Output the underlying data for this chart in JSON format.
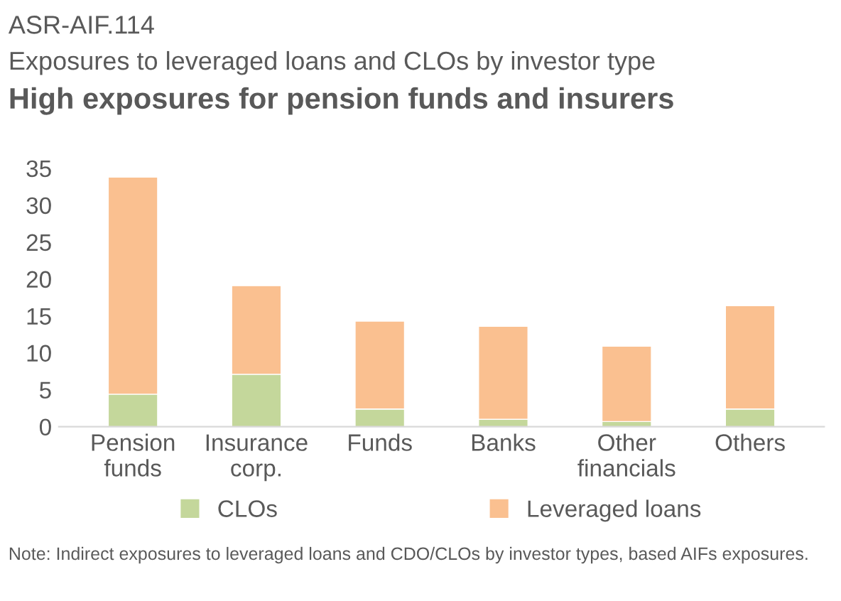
{
  "chart_data": {
    "type": "bar",
    "title": "High exposures for pension funds and insurers",
    "subtitle": "Exposures to leveraged loans and CLOs by investor type",
    "annotations": [
      "ASR-AIF.114",
      "Note: Indirect exposures to leveraged loans and CDO/CLOs by investor types, based AIFs exposures."
    ],
    "categories": [
      "Pension\nfunds",
      "Insurance\ncorp.",
      "Funds",
      "Banks",
      "Other\nfinancials",
      "Others"
    ],
    "stacked": true,
    "series": [
      {
        "name": "CLOs",
        "color": "#c4d79b",
        "values": [
          4.4,
          7.1,
          2.4,
          1.0,
          0.7,
          2.4
        ]
      },
      {
        "name": "Leveraged loans",
        "color": "#fac090",
        "values": [
          29.4,
          12.0,
          11.9,
          12.6,
          10.2,
          14.0
        ]
      }
    ],
    "ylim": [
      0,
      35
    ],
    "yticks": [
      0,
      5,
      10,
      15,
      20,
      25,
      30,
      35
    ],
    "grid": false,
    "legend": "bottom"
  }
}
